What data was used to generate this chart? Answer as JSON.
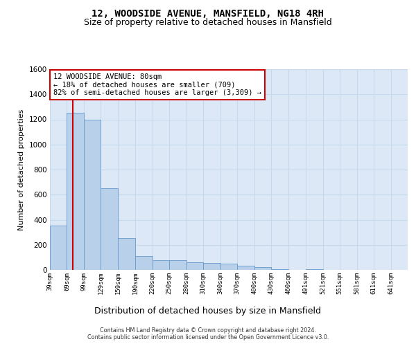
{
  "title": "12, WOODSIDE AVENUE, MANSFIELD, NG18 4RH",
  "subtitle": "Size of property relative to detached houses in Mansfield",
  "xlabel": "Distribution of detached houses by size in Mansfield",
  "ylabel": "Number of detached properties",
  "footer_line1": "Contains HM Land Registry data © Crown copyright and database right 2024.",
  "footer_line2": "Contains public sector information licensed under the Open Government Licence v3.0.",
  "annotation_line1": "12 WOODSIDE AVENUE: 80sqm",
  "annotation_line2": "← 18% of detached houses are smaller (709)",
  "annotation_line3": "82% of semi-detached houses are larger (3,309) →",
  "property_size": 80,
  "bar_color": "#b8d0ea",
  "bar_edge_color": "#6699cc",
  "grid_color": "#c8d8ec",
  "background_color": "#dce8f5",
  "annotation_box_color": "#cc0000",
  "vline_color": "#cc0000",
  "categories": [
    "39sqm",
    "69sqm",
    "99sqm",
    "129sqm",
    "159sqm",
    "190sqm",
    "220sqm",
    "250sqm",
    "280sqm",
    "310sqm",
    "340sqm",
    "370sqm",
    "400sqm",
    "430sqm",
    "460sqm",
    "491sqm",
    "521sqm",
    "551sqm",
    "581sqm",
    "611sqm",
    "641sqm"
  ],
  "bin_edges": [
    39,
    69,
    99,
    129,
    159,
    190,
    220,
    250,
    280,
    310,
    340,
    370,
    400,
    430,
    460,
    491,
    521,
    551,
    581,
    611,
    641,
    671
  ],
  "values": [
    355,
    1250,
    1195,
    650,
    255,
    110,
    80,
    78,
    62,
    55,
    48,
    33,
    22,
    5,
    0,
    5,
    0,
    0,
    0,
    0,
    0
  ],
  "ylim": [
    0,
    1600
  ],
  "yticks": [
    0,
    200,
    400,
    600,
    800,
    1000,
    1200,
    1400,
    1600
  ]
}
